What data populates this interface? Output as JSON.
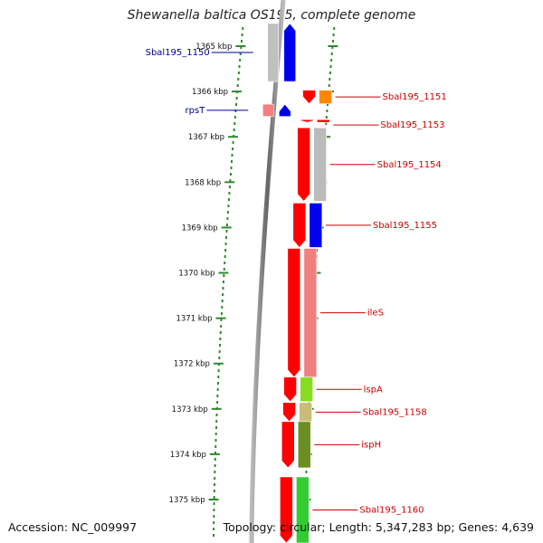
{
  "title": "Shewanella baltica OS195, complete genome",
  "accession": "Accession: NC_009997",
  "summary": "Topology: circular; Length: 5,347,283 bp; Genes: 4,639",
  "ruler": {
    "unit": "kbp",
    "start_kbp": 1364.9,
    "ticks": [
      1365,
      1366,
      1367,
      1368,
      1369,
      1370,
      1371,
      1372,
      1373,
      1374,
      1375
    ]
  },
  "genes": [
    {
      "name": "Sbal195_1150",
      "strand": "+",
      "start_kbp": 1364.5,
      "end_kbp": 1365.78,
      "color": "#0000ee",
      "label_color": "#00008b"
    },
    {
      "name": "rpsT",
      "strand": "+",
      "start_kbp": 1366.28,
      "end_kbp": 1366.55,
      "color": "#0000ee",
      "label_color": "#00008b"
    },
    {
      "name": "Sbal195_1151",
      "strand": "-",
      "start_kbp": 1365.97,
      "end_kbp": 1366.27,
      "color": "#ff8800",
      "label_color": "#cc0000"
    },
    {
      "name": "Sbal195_1153",
      "strand": "-",
      "start_kbp": 1366.62,
      "end_kbp": 1366.68,
      "color": "#ff0000",
      "label_color": "#cc0000"
    },
    {
      "name": "Sbal195_1154",
      "strand": "-",
      "start_kbp": 1366.8,
      "end_kbp": 1368.42,
      "color": "#bbbbbb",
      "label_color": "#cc0000"
    },
    {
      "name": "Sbal195_1155",
      "strand": "-",
      "start_kbp": 1368.46,
      "end_kbp": 1369.44,
      "color": "#0000ee",
      "label_color": "#cc0000"
    },
    {
      "name": "ileS",
      "strand": "-",
      "start_kbp": 1369.46,
      "end_kbp": 1372.3,
      "color": "#f08080",
      "label_color": "#cc0000"
    },
    {
      "name": "lspA",
      "strand": "-",
      "start_kbp": 1372.3,
      "end_kbp": 1372.84,
      "color": "#88dd22",
      "label_color": "#cc0000"
    },
    {
      "name": "Sbal195_1158",
      "strand": "-",
      "start_kbp": 1372.86,
      "end_kbp": 1373.28,
      "color": "#ccbb77",
      "label_color": "#cc0000"
    },
    {
      "name": "ispH",
      "strand": "-",
      "start_kbp": 1373.28,
      "end_kbp": 1374.3,
      "color": "#6b8e23",
      "label_color": "#cc0000"
    },
    {
      "name": "Sbal195_1160",
      "strand": "-",
      "start_kbp": 1374.5,
      "end_kbp": 1376.3,
      "color": "#33cc33",
      "label_color": "#cc0000"
    }
  ],
  "colors": {
    "ruler": "#2e8b2e",
    "backbone": "#888888",
    "cds_arrow": "#ff0000"
  }
}
